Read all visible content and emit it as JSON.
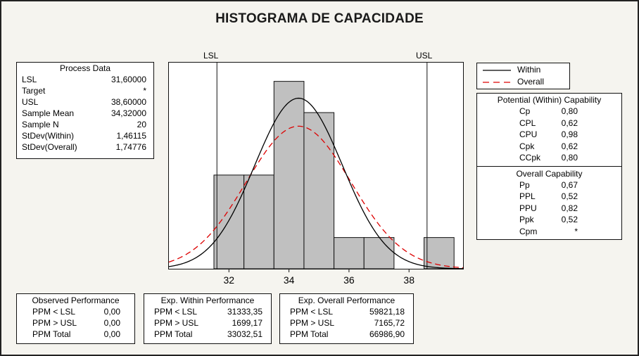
{
  "title": "HISTOGRAMA DE CAPACIDADE",
  "spec_labels": {
    "lsl": "LSL",
    "usl": "USL"
  },
  "process_data": {
    "heading": "Process Data",
    "rows": [
      {
        "label": "LSL",
        "value": "31,60000"
      },
      {
        "label": "Target",
        "value": "*"
      },
      {
        "label": "USL",
        "value": "38,60000"
      },
      {
        "label": "Sample Mean",
        "value": "34,32000"
      },
      {
        "label": "Sample N",
        "value": "20"
      },
      {
        "label": "StDev(Within)",
        "value": "1,46115"
      },
      {
        "label": "StDev(Overall)",
        "value": "1,74776"
      }
    ]
  },
  "legend": {
    "within": "Within",
    "overall": "Overall"
  },
  "potential": {
    "heading": "Potential (Within) Capability",
    "rows": [
      {
        "label": "Cp",
        "value": "0,80"
      },
      {
        "label": "CPL",
        "value": "0,62"
      },
      {
        "label": "CPU",
        "value": "0,98"
      },
      {
        "label": "Cpk",
        "value": "0,62"
      },
      {
        "label": "CCpk",
        "value": "0,80"
      }
    ]
  },
  "overall_cap": {
    "heading": "Overall Capability",
    "rows": [
      {
        "label": "Pp",
        "value": "0,67"
      },
      {
        "label": "PPL",
        "value": "0,52"
      },
      {
        "label": "PPU",
        "value": "0,82"
      },
      {
        "label": "Ppk",
        "value": "0,52"
      },
      {
        "label": "Cpm",
        "value": "*"
      }
    ]
  },
  "observed": {
    "heading": "Observed Performance",
    "rows": [
      {
        "label": "PPM < LSL",
        "value": "0,00"
      },
      {
        "label": "PPM > USL",
        "value": "0,00"
      },
      {
        "label": "PPM Total",
        "value": "0,00"
      }
    ]
  },
  "exp_within": {
    "heading": "Exp. Within Performance",
    "rows": [
      {
        "label": "PPM < LSL",
        "value": "31333,35"
      },
      {
        "label": "PPM > USL",
        "value": "1699,17"
      },
      {
        "label": "PPM Total",
        "value": "33032,51"
      }
    ]
  },
  "exp_overall": {
    "heading": "Exp. Overall Performance",
    "rows": [
      {
        "label": "PPM < LSL",
        "value": "59821,18"
      },
      {
        "label": "PPM > USL",
        "value": "7165,72"
      },
      {
        "label": "PPM Total",
        "value": "66986,90"
      }
    ]
  },
  "chart_data": {
    "type": "bar",
    "title": "HISTOGRAMA DE CAPACIDADE",
    "bin_width": 1.0,
    "bins": [
      {
        "from": 31.5,
        "to": 32.5,
        "count": 3
      },
      {
        "from": 32.5,
        "to": 33.5,
        "count": 3
      },
      {
        "from": 33.5,
        "to": 34.5,
        "count": 6
      },
      {
        "from": 34.5,
        "to": 35.5,
        "count": 5
      },
      {
        "from": 35.5,
        "to": 36.5,
        "count": 1
      },
      {
        "from": 36.5,
        "to": 37.5,
        "count": 1
      },
      {
        "from": 38.5,
        "to": 39.5,
        "count": 1
      }
    ],
    "xlim": [
      30.0,
      39.8
    ],
    "ylim": [
      0,
      6.6
    ],
    "x_ticks": [
      32,
      34,
      36,
      38
    ],
    "x_tick_labels": [
      "32",
      "34",
      "36",
      "38"
    ],
    "lsl": 31.6,
    "usl": 38.6,
    "mean": 34.32,
    "n": 20,
    "stdev_within": 1.46115,
    "stdev_overall": 1.74776,
    "bar_color": "#c0c0c0",
    "curves": [
      {
        "name": "Within",
        "color": "#000000",
        "style": "solid"
      },
      {
        "name": "Overall",
        "color": "#dd0000",
        "style": "dashed"
      }
    ],
    "legend_position": "right",
    "grid": false
  }
}
